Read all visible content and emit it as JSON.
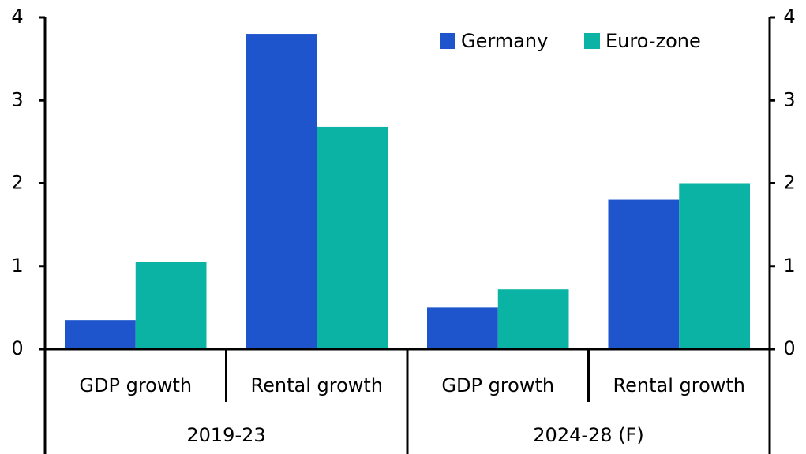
{
  "chart_data": {
    "type": "bar",
    "categories": [
      "GDP growth",
      "Rental growth",
      "GDP growth",
      "Rental growth"
    ],
    "groups": [
      "2019-23",
      "2024-28 (F)"
    ],
    "series": [
      {
        "name": "Germany",
        "color": "#1f55cc",
        "values": [
          0.35,
          3.8,
          0.5,
          1.8
        ]
      },
      {
        "name": "Euro-zone",
        "color": "#0ab3a3",
        "values": [
          1.05,
          2.68,
          0.72,
          2.0
        ]
      }
    ],
    "ylim": [
      0,
      4
    ],
    "yticks": [
      0,
      1,
      2,
      3,
      4
    ],
    "y2lim": [
      0,
      4
    ],
    "y2ticks": [
      0,
      1,
      2,
      3,
      4
    ],
    "legend": "top-right"
  }
}
